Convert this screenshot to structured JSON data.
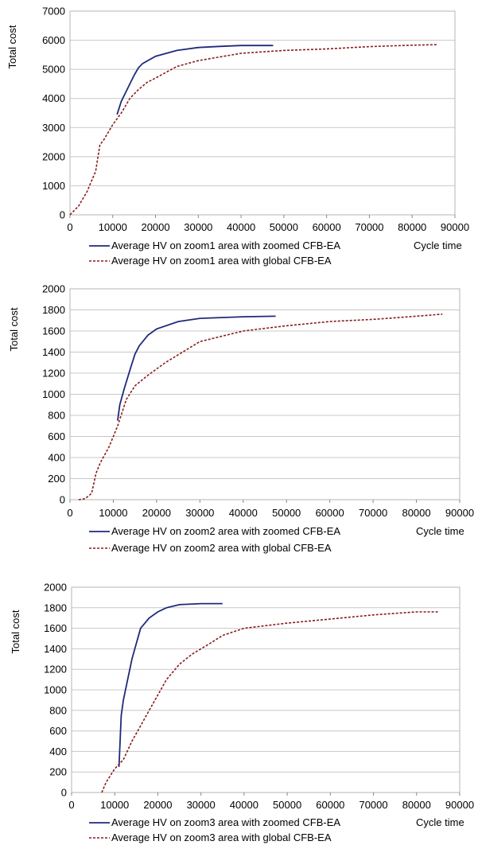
{
  "chart_data": [
    {
      "type": "line",
      "title": "",
      "xlabel": "Cycle time",
      "ylabel": "Total cost",
      "xlim": [
        0,
        90000
      ],
      "ylim": [
        0,
        7000
      ],
      "xticks": [
        0,
        10000,
        20000,
        30000,
        40000,
        50000,
        60000,
        70000,
        80000,
        90000
      ],
      "yticks": [
        0,
        1000,
        2000,
        3000,
        4000,
        5000,
        6000,
        7000
      ],
      "grid": "horizontal",
      "legend": "bottom",
      "series": [
        {
          "name": "Average HV on zoom1 area with zoomed CFB-EA",
          "color": "#1f2a7a",
          "style": "solid",
          "x": [
            11000,
            12000,
            13000,
            14000,
            15000,
            16000,
            17000,
            20000,
            25000,
            30000,
            35000,
            40000,
            47500
          ],
          "y": [
            3450,
            3900,
            4200,
            4500,
            4800,
            5050,
            5200,
            5450,
            5650,
            5750,
            5790,
            5820,
            5820
          ]
        },
        {
          "name": "Average HV on zoom1 area with global CFB-EA",
          "color": "#8b1a1a",
          "style": "dashed",
          "x": [
            0,
            2000,
            4000,
            6000,
            7000,
            8000,
            10000,
            12000,
            14000,
            16000,
            18000,
            20000,
            25000,
            30000,
            40000,
            50000,
            60000,
            70000,
            80000,
            86000
          ],
          "y": [
            0,
            300,
            800,
            1500,
            2400,
            2600,
            3100,
            3500,
            4000,
            4300,
            4550,
            4700,
            5100,
            5300,
            5550,
            5650,
            5700,
            5780,
            5830,
            5850
          ]
        }
      ]
    },
    {
      "type": "line",
      "title": "",
      "xlabel": "Cycle time",
      "ylabel": "Total cost",
      "xlim": [
        0,
        90000
      ],
      "ylim": [
        0,
        2000
      ],
      "xticks": [
        0,
        10000,
        20000,
        30000,
        40000,
        50000,
        60000,
        70000,
        80000,
        90000
      ],
      "yticks": [
        0,
        200,
        400,
        600,
        800,
        1000,
        1200,
        1400,
        1600,
        1800,
        2000
      ],
      "grid": "horizontal",
      "legend": "bottom",
      "series": [
        {
          "name": "Average HV on zoom2 area with zoomed CFB-EA",
          "color": "#1f2a7a",
          "style": "solid",
          "x": [
            11000,
            11500,
            12500,
            14000,
            15000,
            16000,
            18000,
            20000,
            25000,
            30000,
            40000,
            47500
          ],
          "y": [
            750,
            900,
            1050,
            1250,
            1380,
            1460,
            1560,
            1620,
            1690,
            1720,
            1735,
            1740
          ]
        },
        {
          "name": "Average HV on zoom2 area with global CFB-EA",
          "color": "#8b1a1a",
          "style": "dashed",
          "x": [
            2000,
            3500,
            5000,
            6000,
            7000,
            9000,
            11000,
            13000,
            15000,
            18000,
            22000,
            26000,
            30000,
            40000,
            50000,
            60000,
            70000,
            80000,
            86000
          ],
          "y": [
            0,
            10,
            60,
            250,
            350,
            500,
            700,
            950,
            1080,
            1180,
            1300,
            1400,
            1500,
            1600,
            1650,
            1690,
            1710,
            1740,
            1760
          ]
        }
      ]
    },
    {
      "type": "line",
      "title": "",
      "xlabel": "Cycle time",
      "ylabel": "Total cost",
      "xlim": [
        0,
        90000
      ],
      "ylim": [
        0,
        2000
      ],
      "xticks": [
        0,
        10000,
        20000,
        30000,
        40000,
        50000,
        60000,
        70000,
        80000,
        90000
      ],
      "yticks": [
        0,
        200,
        400,
        600,
        800,
        1000,
        1200,
        1400,
        1600,
        1800,
        2000
      ],
      "grid": "horizontal",
      "legend": "bottom",
      "series": [
        {
          "name": "Average HV on zoom3 area with zoomed CFB-EA",
          "color": "#1f2a7a",
          "style": "solid",
          "x": [
            11000,
            11500,
            12000,
            13000,
            14000,
            15000,
            16000,
            18000,
            20000,
            22000,
            25000,
            30000,
            35000
          ],
          "y": [
            250,
            750,
            900,
            1100,
            1300,
            1450,
            1600,
            1700,
            1760,
            1800,
            1830,
            1840,
            1840
          ]
        },
        {
          "name": "Average HV on zoom3 area with global CFB-EA",
          "color": "#8b1a1a",
          "style": "dashed",
          "x": [
            7000,
            8000,
            10000,
            12000,
            14000,
            16000,
            18000,
            20000,
            22000,
            25000,
            28000,
            32000,
            35000,
            40000,
            50000,
            60000,
            70000,
            80000,
            85000
          ],
          "y": [
            0,
            100,
            230,
            320,
            500,
            650,
            800,
            950,
            1100,
            1250,
            1350,
            1450,
            1530,
            1600,
            1650,
            1690,
            1730,
            1760,
            1760
          ]
        }
      ]
    }
  ]
}
